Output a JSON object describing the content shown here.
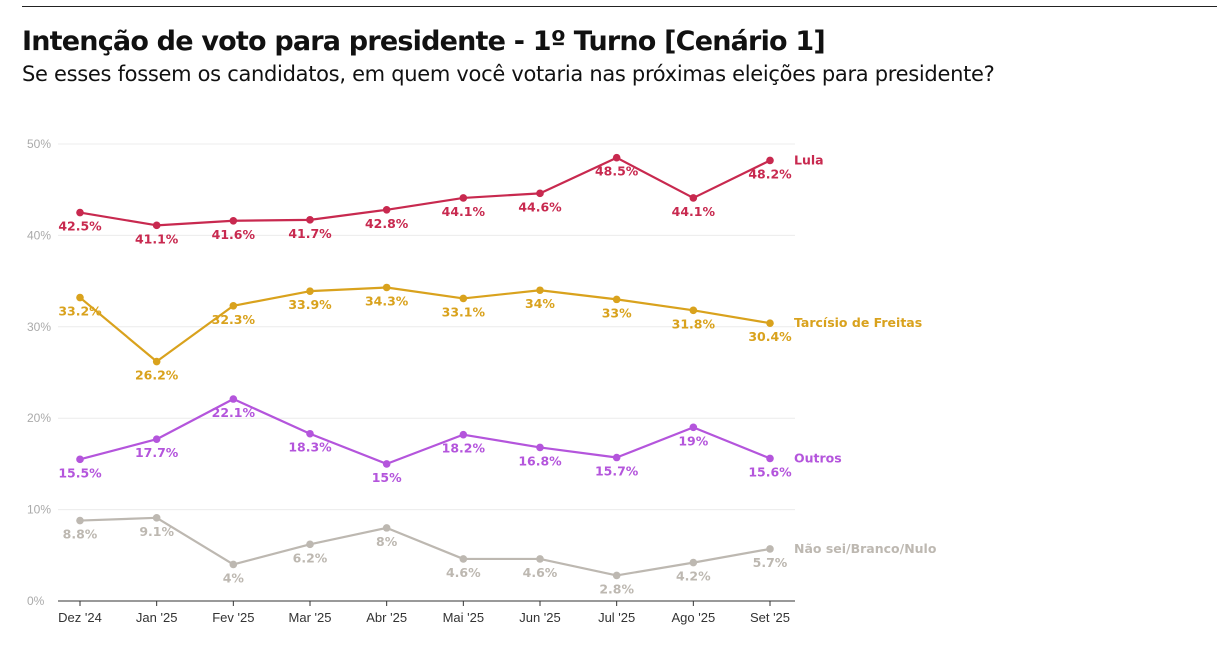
{
  "title": "Intenção de voto para presidente - 1º Turno [Cenário 1]",
  "subtitle": "Se esses fossem os candidatos, em quem você votaria nas próximas eleições para presidente?",
  "chart_data": {
    "type": "line",
    "categories": [
      "Dez '24",
      "Jan '25",
      "Fev '25",
      "Mar '25",
      "Abr '25",
      "Mai '25",
      "Jun '25",
      "Jul '25",
      "Ago '25",
      "Set '25"
    ],
    "y_ticks": [
      "0%",
      "10%",
      "20%",
      "30%",
      "40%",
      "50%"
    ],
    "ylim": [
      0,
      50
    ],
    "grid": true,
    "series": [
      {
        "name": "Lula",
        "color": "#c8294f",
        "values": [
          42.5,
          41.1,
          41.6,
          41.7,
          42.8,
          44.1,
          44.6,
          48.5,
          44.1,
          48.2
        ],
        "labels": [
          "42.5%",
          "41.1%",
          "41.6%",
          "41.7%",
          "42.8%",
          "44.1%",
          "44.6%",
          "48.5%",
          "44.1%",
          "48.2%"
        ]
      },
      {
        "name": "Tarcísio de Freitas",
        "color": "#d9a21d",
        "values": [
          33.2,
          26.2,
          32.3,
          33.9,
          34.3,
          33.1,
          34,
          33,
          31.8,
          30.4
        ],
        "labels": [
          "33.2%",
          "26.2%",
          "32.3%",
          "33.9%",
          "34.3%",
          "33.1%",
          "34%",
          "33%",
          "31.8%",
          "30.4%"
        ]
      },
      {
        "name": "Outros",
        "color": "#b455dc",
        "values": [
          15.5,
          17.7,
          22.1,
          18.3,
          15,
          18.2,
          16.8,
          15.7,
          19,
          15.6
        ],
        "labels": [
          "15.5%",
          "17.7%",
          "22.1%",
          "18.3%",
          "15%",
          "18.2%",
          "16.8%",
          "15.7%",
          "19%",
          "15.6%"
        ]
      },
      {
        "name": "Não sei/Branco/Nulo",
        "color": "#bdb8b1",
        "values": [
          8.8,
          9.1,
          4,
          6.2,
          8,
          4.6,
          4.6,
          2.8,
          4.2,
          5.7
        ],
        "labels": [
          "8.8%",
          "9.1%",
          "4%",
          "6.2%",
          "8%",
          "4.6%",
          "4.6%",
          "2.8%",
          "4.2%",
          "5.7%"
        ]
      }
    ]
  }
}
